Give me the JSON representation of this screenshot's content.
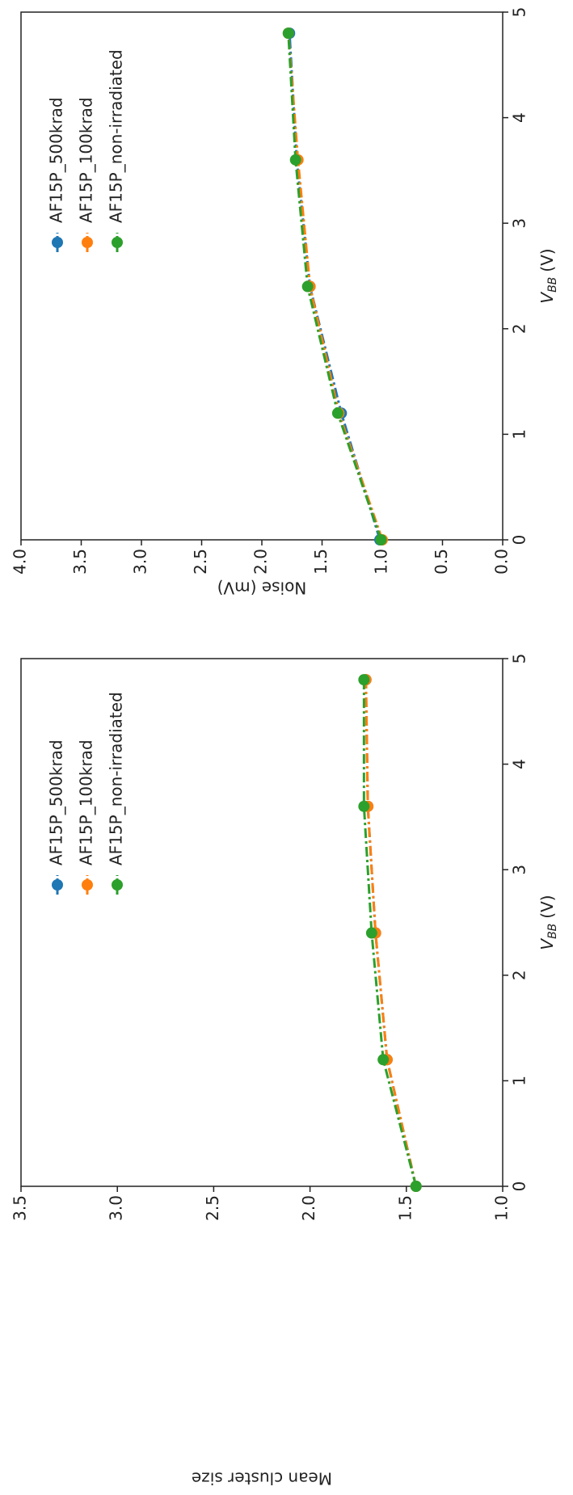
{
  "chart_data": [
    {
      "type": "line",
      "xlabel": {
        "text": "V",
        "subscript": "BB",
        "unit": "(V)"
      },
      "ylabel": "Noise (mV)",
      "x": [
        0,
        1.2,
        2.4,
        3.6,
        4.8
      ],
      "series": [
        {
          "name": "AF15P_500krad",
          "color": "#1f77b4",
          "values": [
            1.02,
            1.34,
            1.6,
            1.71,
            1.77
          ]
        },
        {
          "name": "AF15P_100krad",
          "color": "#ff7f0e",
          "values": [
            1.0,
            1.36,
            1.6,
            1.7,
            1.78
          ]
        },
        {
          "name": "AF15P_non-irradiated",
          "color": "#2ca02c",
          "values": [
            1.01,
            1.37,
            1.62,
            1.72,
            1.78
          ]
        }
      ],
      "xlim": [
        0,
        5
      ],
      "xticks": [
        0,
        1,
        2,
        3,
        4,
        5
      ],
      "ylim": [
        0,
        4
      ],
      "yticks": [
        {
          "value": 0,
          "label": "0.0"
        },
        {
          "value": 0.5,
          "label": "0.5"
        },
        {
          "value": 1,
          "label": "1.0"
        },
        {
          "value": 1.5,
          "label": "1.5"
        },
        {
          "value": 2,
          "label": "2.0"
        },
        {
          "value": 2.5,
          "label": "2.5"
        },
        {
          "value": 3,
          "label": "3.0"
        },
        {
          "value": 3.5,
          "label": "3.5"
        },
        {
          "value": 4,
          "label": "4.0"
        }
      ],
      "legend": "upper right",
      "grid": false
    },
    {
      "type": "line",
      "xlabel": {
        "text": "V",
        "subscript": "BB",
        "unit": "(V)"
      },
      "ylabel": "Mean cluster size",
      "x": [
        0,
        1.2,
        2.4,
        3.6,
        4.8
      ],
      "series": [
        {
          "name": "AF15P_500krad",
          "color": "#1f77b4",
          "values": [
            1.45,
            1.6,
            1.66,
            1.7,
            1.71
          ]
        },
        {
          "name": "AF15P_100krad",
          "color": "#ff7f0e",
          "values": [
            1.45,
            1.6,
            1.66,
            1.7,
            1.71
          ]
        },
        {
          "name": "AF15P_non-irradiated",
          "color": "#2ca02c",
          "values": [
            1.45,
            1.62,
            1.68,
            1.72,
            1.72
          ]
        }
      ],
      "xlim": [
        0,
        5
      ],
      "xticks": [
        0,
        1,
        2,
        3,
        4,
        5
      ],
      "ylim": [
        1,
        3.5
      ],
      "yticks": [
        {
          "value": 1,
          "label": "1.0"
        },
        {
          "value": 1.5,
          "label": "1.5"
        },
        {
          "value": 2,
          "label": "2.0"
        },
        {
          "value": 2.5,
          "label": "2.5"
        },
        {
          "value": 3,
          "label": "3.0"
        },
        {
          "value": 3.5,
          "label": "3.5"
        }
      ],
      "legend": "upper right",
      "grid": false
    }
  ]
}
